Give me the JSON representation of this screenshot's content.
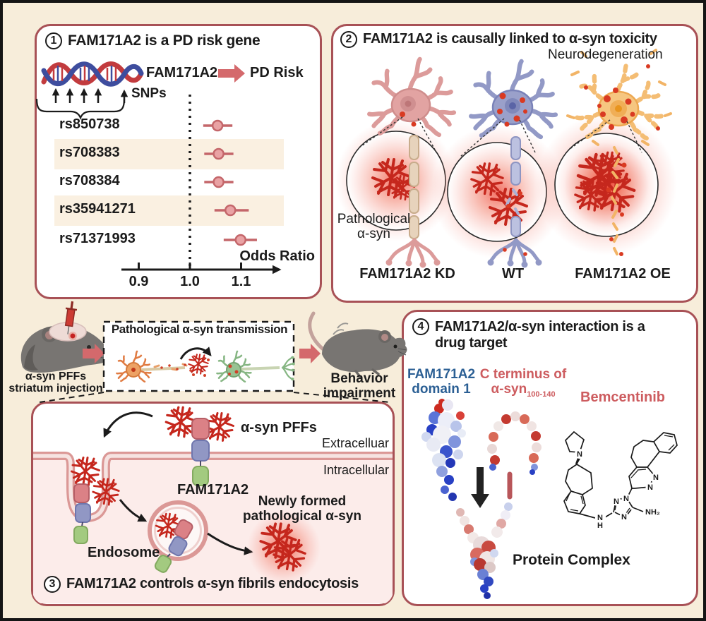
{
  "colors": {
    "background": "#f7edda",
    "panel_border": "#a85156",
    "arrow_red": "#d4696c",
    "fibril_red": "#c5271d",
    "stripe_cream": "#faf0e1",
    "point_fill": "#e9a2a4",
    "point_stroke": "#c4666a",
    "membrane_pink": "#db9896",
    "label_blue": "#2b5f94",
    "label_red": "#cd5c5f"
  },
  "panel1": {
    "number": "1",
    "title": "FAM171A2 is a PD risk gene",
    "gene_label": "FAM171A2",
    "arrow_to": "PD Risk",
    "snps_label": "SNPs",
    "axis_label": "Odds Ratio"
  },
  "chart_data": {
    "type": "forest",
    "xlabel": "Odds Ratio",
    "xlim": [
      0.86,
      1.18
    ],
    "reference_line": 1.0,
    "x_ticks": [
      0.9,
      1.0,
      1.1
    ],
    "tick_labels": [
      "0.9",
      "1.0",
      "1.1"
    ],
    "rows": [
      {
        "snp": "rs850738",
        "or": 1.054,
        "ci_low": 1.026,
        "ci_high": 1.083
      },
      {
        "snp": "rs708383",
        "or": 1.056,
        "ci_low": 1.028,
        "ci_high": 1.085
      },
      {
        "snp": "rs708384",
        "or": 1.056,
        "ci_low": 1.028,
        "ci_high": 1.085
      },
      {
        "snp": "rs35941271",
        "or": 1.079,
        "ci_low": 1.048,
        "ci_high": 1.115
      },
      {
        "snp": "rs71371993",
        "or": 1.099,
        "ci_low": 1.066,
        "ci_high": 1.131
      }
    ]
  },
  "panel2": {
    "number": "2",
    "title": "FAM171A2 is causally linked to α-syn toxicity",
    "top_right_label": "Neurodegeneration",
    "circle_label_line1": "Pathological",
    "circle_label_line2": "α-syn",
    "neurons": [
      {
        "label": "FAM171A2 KD"
      },
      {
        "label": "WT"
      },
      {
        "label": "FAM171A2 OE"
      }
    ]
  },
  "middle": {
    "mouse1_label_line1": "α-syn PFFs",
    "mouse1_label_line2": "striatum injection",
    "box_title": "Pathological α-syn transmission",
    "mouse2_label_line1": "Behavior",
    "mouse2_label_line2": "impairment"
  },
  "panel3": {
    "number": "3",
    "title": "FAM171A2 controls α-syn fibrils endocytosis",
    "pffs_label": "α-syn PFFs",
    "extracellular_label": "Extracelluar",
    "intracellular_label": "Intracellular",
    "receptor_label": "FAM171A2",
    "endosome_label": "Endosome",
    "newly_formed_line1": "Newly formed",
    "newly_formed_line2": "pathological α-syn"
  },
  "panel4": {
    "number": "4",
    "title_line1": "FAM171A2/α-syn interaction is a",
    "title_line2": "drug target",
    "domain_label_line1": "FAM171A2",
    "domain_label_line2": "domain 1",
    "cterm_label_line1": "C terminus of",
    "cterm_label_line2": "α-syn",
    "cterm_subscript": "100-140",
    "drug_label": "Bemcentinib",
    "complex_label": "Protein Complex",
    "molecule_atoms": {
      "n1": "N",
      "n2": "N",
      "n3": "N",
      "n4": "N",
      "n5": "N",
      "n6": "N",
      "nh_n": "N",
      "nh_h": "H",
      "nh2": "NH₂"
    }
  }
}
